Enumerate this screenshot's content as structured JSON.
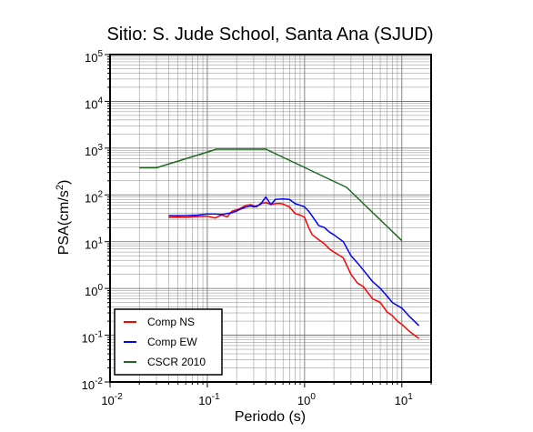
{
  "chart_data": {
    "type": "line",
    "title": "Sitio: S. Jude School, Santa Ana (SJUD)",
    "xlabel": "Periodo (s)",
    "ylabel_main": "PSA(cm/s",
    "ylabel_sup": "2",
    "ylabel_tail": ")",
    "x_scale": "log",
    "y_scale": "log",
    "xlim": [
      0.01,
      20
    ],
    "ylim": [
      0.01,
      100000
    ],
    "grid": true,
    "legend_position": "bottom-left",
    "x_ticks": [
      {
        "base": "10",
        "exp": "-2"
      },
      {
        "base": "10",
        "exp": "-1"
      },
      {
        "base": "10",
        "exp": "0"
      },
      {
        "base": "10",
        "exp": "1"
      }
    ],
    "y_ticks": [
      {
        "base": "10",
        "exp": "-2"
      },
      {
        "base": "10",
        "exp": "-1"
      },
      {
        "base": "10",
        "exp": "0"
      },
      {
        "base": "10",
        "exp": "1"
      },
      {
        "base": "10",
        "exp": "2"
      },
      {
        "base": "10",
        "exp": "3"
      },
      {
        "base": "10",
        "exp": "4"
      },
      {
        "base": "10",
        "exp": "5"
      }
    ],
    "series": [
      {
        "name": "Comp NS",
        "color": "#ff0000",
        "points": [
          [
            0.04,
            33
          ],
          [
            0.05,
            33.5
          ],
          [
            0.06,
            33
          ],
          [
            0.07,
            34
          ],
          [
            0.08,
            34.5
          ],
          [
            0.1,
            35
          ],
          [
            0.12,
            32
          ],
          [
            0.14,
            37
          ],
          [
            0.16,
            34
          ],
          [
            0.18,
            45
          ],
          [
            0.2,
            48
          ],
          [
            0.22,
            52
          ],
          [
            0.25,
            60
          ],
          [
            0.28,
            62
          ],
          [
            0.32,
            55
          ],
          [
            0.35,
            65
          ],
          [
            0.4,
            68
          ],
          [
            0.45,
            63
          ],
          [
            0.5,
            65
          ],
          [
            0.55,
            66
          ],
          [
            0.6,
            64
          ],
          [
            0.7,
            55
          ],
          [
            0.8,
            40
          ],
          [
            0.9,
            37
          ],
          [
            1.0,
            33
          ],
          [
            1.1,
            20
          ],
          [
            1.2,
            14
          ],
          [
            1.4,
            11
          ],
          [
            1.6,
            9
          ],
          [
            1.8,
            7
          ],
          [
            2.0,
            6
          ],
          [
            2.5,
            4.5
          ],
          [
            3.0,
            2
          ],
          [
            3.5,
            1.3
          ],
          [
            4.0,
            1.1
          ],
          [
            5.0,
            0.6
          ],
          [
            6.0,
            0.5
          ],
          [
            7.0,
            0.32
          ],
          [
            8.0,
            0.26
          ],
          [
            9.0,
            0.2
          ],
          [
            10.0,
            0.17
          ],
          [
            12.0,
            0.12
          ],
          [
            15.0,
            0.085
          ]
        ]
      },
      {
        "name": "Comp EW",
        "color": "#0000ff",
        "points": [
          [
            0.04,
            36
          ],
          [
            0.05,
            36
          ],
          [
            0.06,
            36
          ],
          [
            0.07,
            36.5
          ],
          [
            0.08,
            37
          ],
          [
            0.1,
            39
          ],
          [
            0.12,
            39
          ],
          [
            0.14,
            38
          ],
          [
            0.16,
            40
          ],
          [
            0.18,
            42
          ],
          [
            0.2,
            45
          ],
          [
            0.22,
            50
          ],
          [
            0.25,
            55
          ],
          [
            0.28,
            58
          ],
          [
            0.3,
            55
          ],
          [
            0.35,
            62
          ],
          [
            0.4,
            90
          ],
          [
            0.45,
            62
          ],
          [
            0.5,
            80
          ],
          [
            0.6,
            82
          ],
          [
            0.7,
            80
          ],
          [
            0.8,
            65
          ],
          [
            0.9,
            60
          ],
          [
            1.0,
            55
          ],
          [
            1.1,
            45
          ],
          [
            1.2,
            35
          ],
          [
            1.4,
            22
          ],
          [
            1.6,
            20
          ],
          [
            1.8,
            16
          ],
          [
            2.0,
            14
          ],
          [
            2.5,
            10
          ],
          [
            3.0,
            5
          ],
          [
            3.5,
            3.5
          ],
          [
            4.0,
            2.5
          ],
          [
            5.0,
            1.4
          ],
          [
            6.0,
            1.0
          ],
          [
            7.0,
            0.7
          ],
          [
            8.0,
            0.5
          ],
          [
            10.0,
            0.38
          ],
          [
            12.0,
            0.25
          ],
          [
            15.0,
            0.16
          ]
        ]
      },
      {
        "name": "CSCR 2010",
        "color": "#1e6b1e",
        "points": [
          [
            0.02,
            380
          ],
          [
            0.03,
            380
          ],
          [
            0.125,
            950
          ],
          [
            0.4,
            950
          ],
          [
            2.7,
            145
          ],
          [
            10.0,
            10.5
          ]
        ]
      }
    ]
  }
}
